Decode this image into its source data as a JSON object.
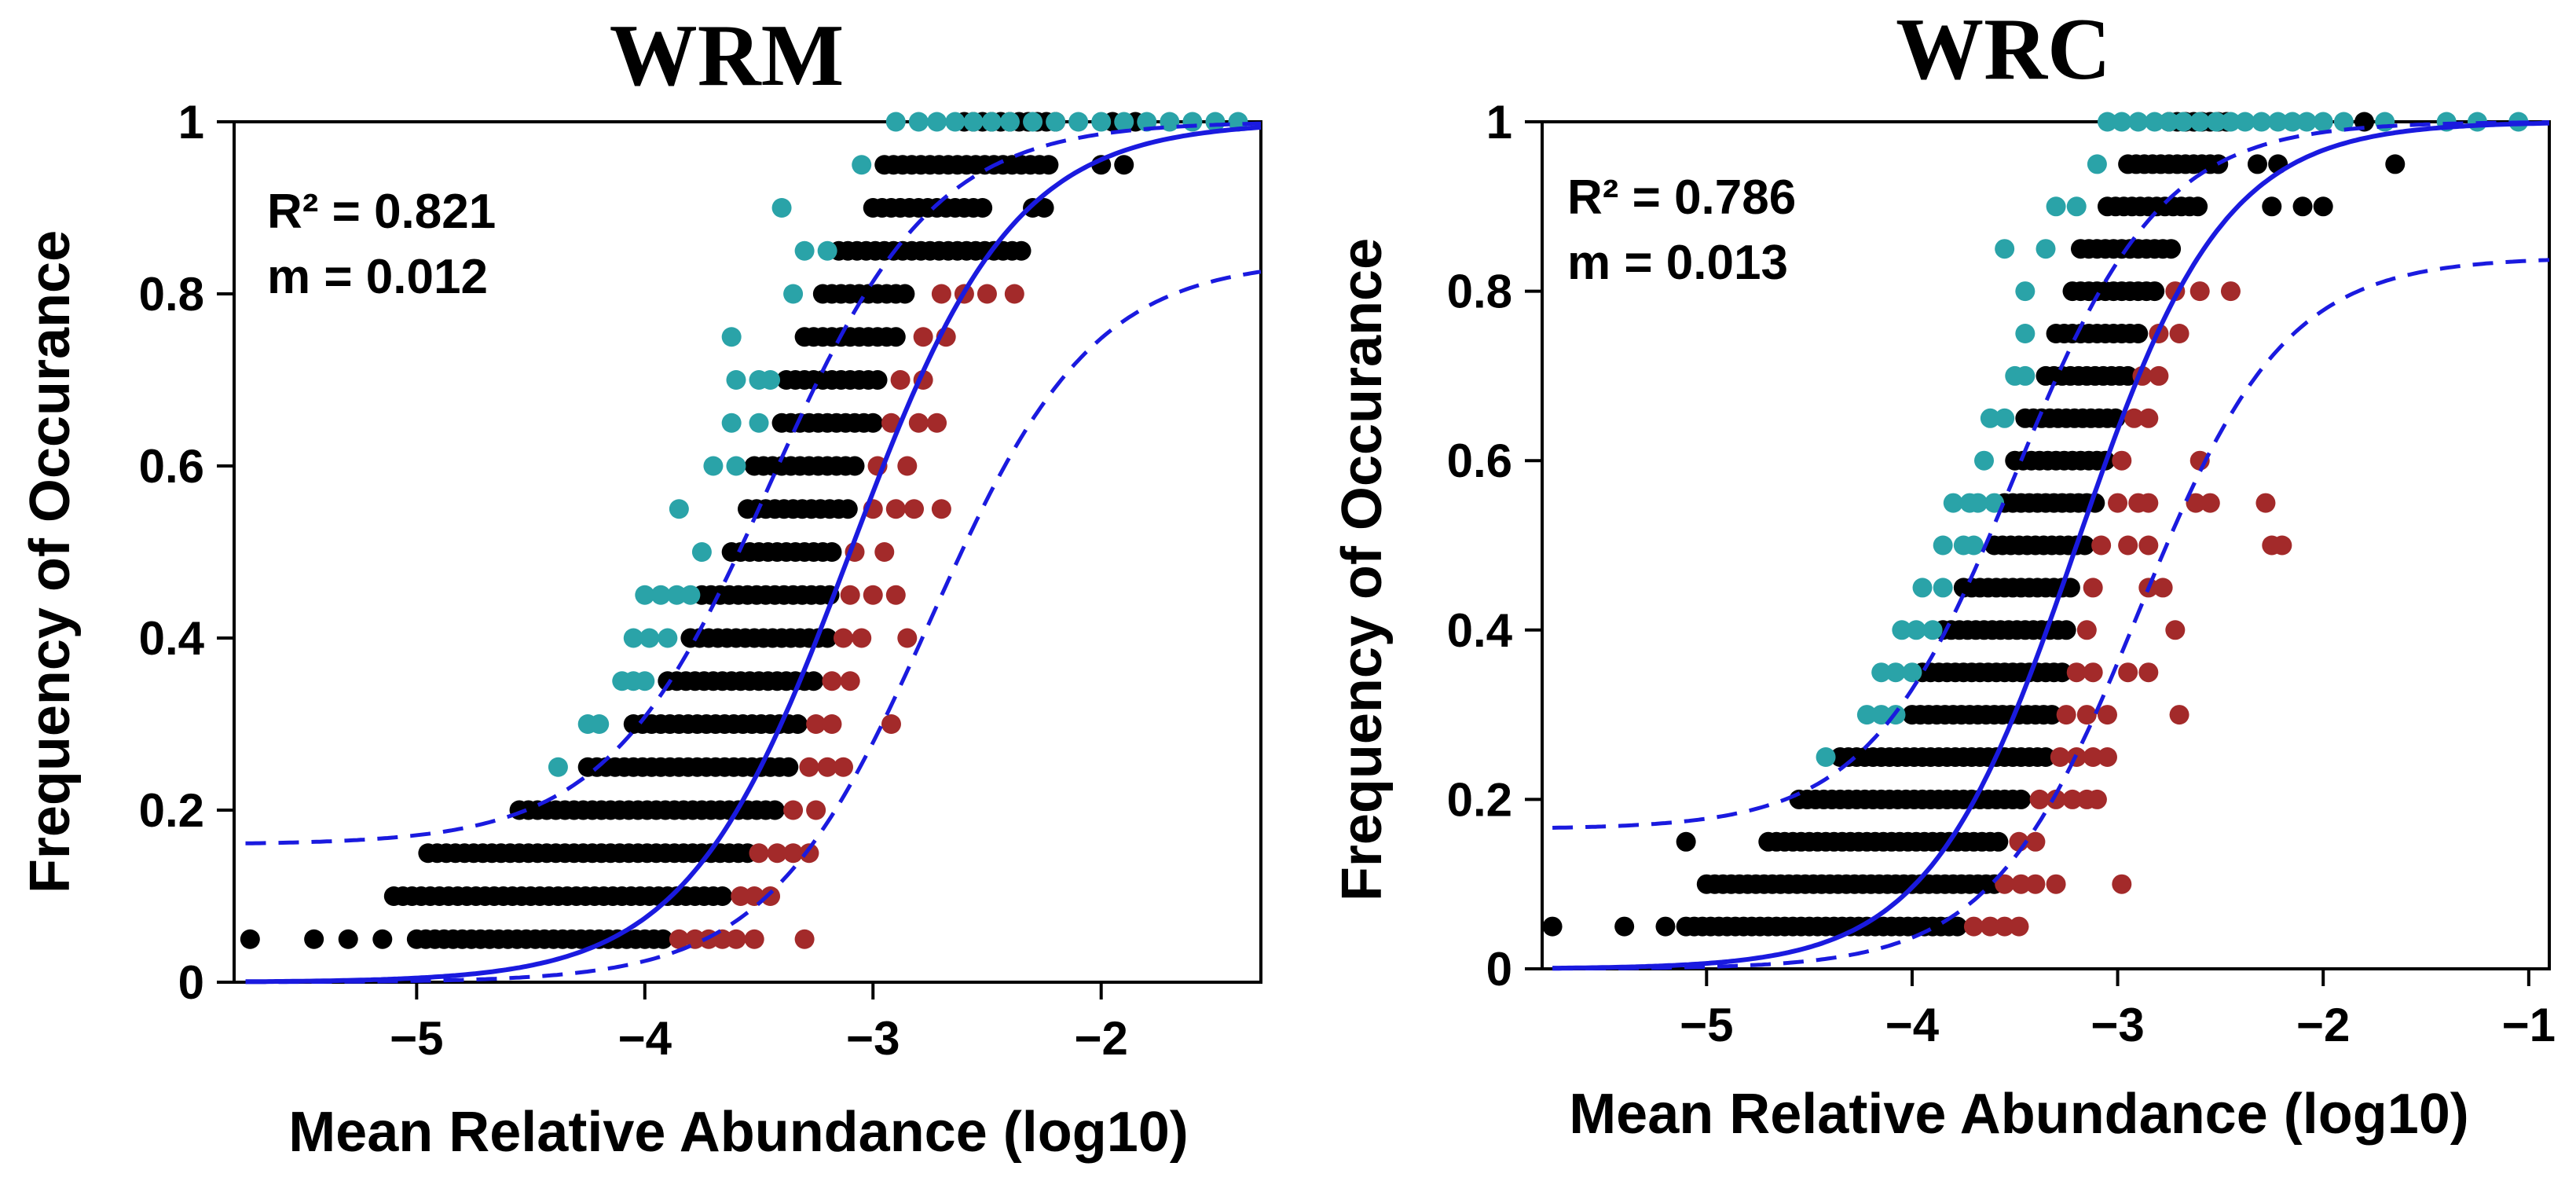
{
  "colors": {
    "above": "#2aa3a8",
    "within": "#000000",
    "below": "#a32a2a",
    "fit": "#1a1adf"
  },
  "chart_data": [
    {
      "type": "scatter",
      "title": "WRM",
      "xlabel": "Mean Relative Abundance (log10)",
      "ylabel": "Frequency of Occurance",
      "xlim": [
        -5.8,
        -1.3
      ],
      "ylim": [
        0,
        1
      ],
      "xticks": [
        -5,
        -4,
        -3,
        -2
      ],
      "xtick_labels": [
        "−5",
        "−4",
        "−3",
        "−2"
      ],
      "yticks": [
        0,
        0.2,
        0.4,
        0.6,
        0.8,
        1
      ],
      "ytick_labels": [
        "0",
        "0.2",
        "0.4",
        "0.6",
        "0.8",
        "1"
      ],
      "annotations": [
        "R² = 0.821",
        "m = 0.012"
      ],
      "model": {
        "type": "sigmoid_fit",
        "center": -3.1,
        "slope": 2.8,
        "upper_ci_max": 1.0,
        "lower_ci_max": 0.84,
        "upper_ci_min": 0.16,
        "ci_shift": 0.35,
        "r2": 0.821,
        "m": 0.012
      },
      "rows": [
        {
          "y": 0.05,
          "within": [
            -5.73,
            -5.45,
            -5.3,
            -5.15
          ],
          "within_range": [
            -5.0,
            -3.9
          ],
          "below": [
            -3.85,
            -3.78,
            -3.72,
            -3.66,
            -3.6,
            -3.52,
            -3.3
          ],
          "above": []
        },
        {
          "y": 0.1,
          "within": [],
          "within_range": [
            -5.1,
            -3.65
          ],
          "below": [
            -3.58,
            -3.52,
            -3.45
          ],
          "above": []
        },
        {
          "y": 0.15,
          "within": [],
          "within_range": [
            -4.95,
            -3.55
          ],
          "below": [
            -3.5,
            -3.42,
            -3.35,
            -3.28
          ],
          "above": []
        },
        {
          "y": 0.2,
          "within": [],
          "within_range": [
            -4.55,
            -3.42
          ],
          "below": [
            -3.35,
            -3.25
          ],
          "above": []
        },
        {
          "y": 0.25,
          "within": [],
          "within_range": [
            -4.25,
            -3.35
          ],
          "below": [
            -3.28,
            -3.2,
            -3.13
          ],
          "above": [
            -4.38
          ]
        },
        {
          "y": 0.3,
          "within": [],
          "within_range": [
            -4.05,
            -3.3
          ],
          "below": [
            -3.25,
            -3.18,
            -2.92
          ],
          "above": [
            -4.25,
            -4.2
          ]
        },
        {
          "y": 0.35,
          "within": [],
          "within_range": [
            -3.9,
            -3.25
          ],
          "below": [
            -3.18,
            -3.1
          ],
          "above": [
            -4.1,
            -4.05,
            -4.0
          ]
        },
        {
          "y": 0.4,
          "within": [],
          "within_range": [
            -3.8,
            -3.2
          ],
          "below": [
            -3.13,
            -3.05,
            -2.85
          ],
          "above": [
            -4.05,
            -3.98,
            -3.9
          ]
        },
        {
          "y": 0.45,
          "within": [],
          "within_range": [
            -3.75,
            -3.17
          ],
          "below": [
            -3.1,
            -3.0,
            -2.9
          ],
          "above": [
            -4.0,
            -3.93,
            -3.86,
            -3.8
          ]
        },
        {
          "y": 0.5,
          "within": [],
          "within_range": [
            -3.62,
            -3.15
          ],
          "below": [
            -3.08,
            -2.95
          ],
          "above": [
            -3.75
          ]
        },
        {
          "y": 0.55,
          "within": [],
          "within_range": [
            -3.55,
            -3.1
          ],
          "below": [
            -3.0,
            -2.9,
            -2.82,
            -2.7
          ],
          "above": [
            -3.85
          ]
        },
        {
          "y": 0.6,
          "within": [],
          "within_range": [
            -3.52,
            -3.05
          ],
          "below": [
            -2.98,
            -2.85
          ],
          "above": [
            -3.7,
            -3.6
          ]
        },
        {
          "y": 0.65,
          "within": [],
          "within_range": [
            -3.4,
            -3.0
          ],
          "below": [
            -2.92,
            -2.8,
            -2.72
          ],
          "above": [
            -3.62,
            -3.5
          ]
        },
        {
          "y": 0.7,
          "within": [],
          "within_range": [
            -3.38,
            -2.95
          ],
          "below": [
            -2.88,
            -2.78
          ],
          "above": [
            -3.6,
            -3.5,
            -3.45
          ]
        },
        {
          "y": 0.75,
          "within": [],
          "within_range": [
            -3.3,
            -2.9
          ],
          "below": [
            -2.78,
            -2.68
          ],
          "above": [
            -3.62
          ]
        },
        {
          "y": 0.8,
          "within": [],
          "within_range": [
            -3.22,
            -2.85
          ],
          "below": [
            -2.7,
            -2.6,
            -2.5,
            -2.38
          ],
          "above": [
            -3.35
          ]
        },
        {
          "y": 0.85,
          "within": [],
          "within_range": [
            -3.15,
            -2.32
          ],
          "below": [],
          "above": [
            -3.3,
            -3.2
          ]
        },
        {
          "y": 0.9,
          "within": [
            -2.3,
            -2.25
          ],
          "within_range": [
            -3.0,
            -2.5
          ],
          "below": [],
          "above": [
            -3.4
          ]
        },
        {
          "y": 0.95,
          "within": [
            -2.0,
            -1.9
          ],
          "within_range": [
            -2.95,
            -2.2
          ],
          "below": [],
          "above": [
            -3.05
          ]
        },
        {
          "y": 1.0,
          "within": [
            -1.95,
            -1.85
          ],
          "within_range": [
            -2.6,
            -2.2
          ],
          "below": [],
          "above": [
            -2.9,
            -2.8,
            -2.72,
            -2.64,
            -2.56,
            -2.48,
            -2.4,
            -2.3,
            -2.2,
            -2.1,
            -2.0,
            -1.9,
            -1.8,
            -1.7,
            -1.6,
            -1.5,
            -1.4
          ]
        }
      ]
    },
    {
      "type": "scatter",
      "title": "WRC",
      "xlabel": "Mean Relative Abundance (log10)",
      "ylabel": "Frequency of Occurance",
      "xlim": [
        -5.8,
        -0.9
      ],
      "ylim": [
        0,
        1
      ],
      "xticks": [
        -5,
        -4,
        -3,
        -2,
        -1
      ],
      "xtick_labels": [
        "−5",
        "−4",
        "−3",
        "−2",
        "−1"
      ],
      "yticks": [
        0,
        0.2,
        0.4,
        0.6,
        0.8,
        1
      ],
      "ytick_labels": [
        "0",
        "0.2",
        "0.4",
        "0.6",
        "0.8",
        "1"
      ],
      "annotations": [
        "R² = 0.786",
        "m = 0.013"
      ],
      "model": {
        "type": "sigmoid_fit",
        "center": -3.2,
        "slope": 2.8,
        "upper_ci_max": 1.0,
        "lower_ci_max": 0.84,
        "upper_ci_min": 0.165,
        "ci_shift": 0.3,
        "r2": 0.786,
        "m": 0.013
      },
      "rows": [
        {
          "y": 0.05,
          "within": [
            -5.75,
            -5.4,
            -5.2
          ],
          "within_range": [
            -5.1,
            -3.75
          ],
          "below": [
            -3.7,
            -3.62,
            -3.55,
            -3.48
          ],
          "above": []
        },
        {
          "y": 0.1,
          "within": [],
          "within_range": [
            -5.0,
            -3.6
          ],
          "below": [
            -3.55,
            -3.47,
            -3.4,
            -3.3,
            -2.98
          ],
          "above": []
        },
        {
          "y": 0.15,
          "within": [
            -5.1
          ],
          "within_range": [
            -4.7,
            -3.55
          ],
          "below": [
            -3.48,
            -3.4
          ],
          "above": []
        },
        {
          "y": 0.2,
          "within": [],
          "within_range": [
            -4.55,
            -3.45
          ],
          "below": [
            -3.38,
            -3.3,
            -3.22,
            -3.15,
            -3.1
          ],
          "above": []
        },
        {
          "y": 0.25,
          "within": [],
          "within_range": [
            -4.35,
            -3.35
          ],
          "below": [
            -3.28,
            -3.2,
            -3.12,
            -3.05
          ],
          "above": [
            -4.42
          ]
        },
        {
          "y": 0.3,
          "within": [],
          "within_range": [
            -4.0,
            -3.3
          ],
          "below": [
            -3.25,
            -3.15,
            -3.05,
            -2.7
          ],
          "above": [
            -4.22,
            -4.15,
            -4.08
          ]
        },
        {
          "y": 0.35,
          "within": [],
          "within_range": [
            -3.95,
            -3.25
          ],
          "below": [
            -3.2,
            -3.12,
            -2.95,
            -2.85
          ],
          "above": [
            -4.15,
            -4.08,
            -4.0
          ]
        },
        {
          "y": 0.4,
          "within": [],
          "within_range": [
            -3.85,
            -3.22
          ],
          "below": [
            -3.15,
            -2.72
          ],
          "above": [
            -4.05,
            -3.98,
            -3.9
          ]
        },
        {
          "y": 0.45,
          "within": [],
          "within_range": [
            -3.75,
            -3.2
          ],
          "below": [
            -3.12,
            -2.85,
            -2.78
          ],
          "above": [
            -3.95,
            -3.85
          ]
        },
        {
          "y": 0.5,
          "within": [],
          "within_range": [
            -3.6,
            -3.15
          ],
          "below": [
            -3.08,
            -2.95,
            -2.85,
            -2.25,
            -2.2
          ],
          "above": [
            -3.85,
            -3.75,
            -3.7
          ]
        },
        {
          "y": 0.55,
          "within": [],
          "within_range": [
            -3.55,
            -3.08
          ],
          "below": [
            -3.0,
            -2.9,
            -2.85,
            -2.62,
            -2.55,
            -2.28
          ],
          "above": [
            -3.8,
            -3.72,
            -3.68,
            -3.6
          ]
        },
        {
          "y": 0.6,
          "within": [],
          "within_range": [
            -3.5,
            -3.05
          ],
          "below": [
            -2.98,
            -2.6
          ],
          "above": [
            -3.65
          ]
        },
        {
          "y": 0.65,
          "within": [],
          "within_range": [
            -3.45,
            -3.0
          ],
          "below": [
            -2.92,
            -2.85
          ],
          "above": [
            -3.62,
            -3.55
          ]
        },
        {
          "y": 0.7,
          "within": [],
          "within_range": [
            -3.35,
            -2.95
          ],
          "below": [
            -2.88,
            -2.8
          ],
          "above": [
            -3.5,
            -3.45
          ]
        },
        {
          "y": 0.75,
          "within": [],
          "within_range": [
            -3.3,
            -2.88
          ],
          "below": [
            -2.8,
            -2.7
          ],
          "above": [
            -3.45
          ]
        },
        {
          "y": 0.8,
          "within": [],
          "within_range": [
            -3.22,
            -2.8
          ],
          "below": [
            -2.72,
            -2.6,
            -2.45
          ],
          "above": [
            -3.45
          ]
        },
        {
          "y": 0.85,
          "within": [],
          "within_range": [
            -3.18,
            -2.72
          ],
          "below": [],
          "above": [
            -3.55,
            -3.35
          ]
        },
        {
          "y": 0.9,
          "within": [
            -2.25,
            -2.1,
            -2.0
          ],
          "within_range": [
            -3.05,
            -2.6
          ],
          "below": [],
          "above": [
            -3.3,
            -3.2
          ]
        },
        {
          "y": 0.95,
          "within": [
            -2.32,
            -2.22,
            -1.65
          ],
          "within_range": [
            -2.95,
            -2.5
          ],
          "below": [],
          "above": [
            -3.1
          ]
        },
        {
          "y": 1.0,
          "within": [
            -1.8
          ],
          "within_range": [
            -2.75,
            -2.45
          ],
          "below": [],
          "above": [
            -3.05,
            -2.98,
            -2.9,
            -2.82,
            -2.75,
            -2.68,
            -2.6,
            -2.52,
            -2.45,
            -2.38,
            -2.3,
            -2.22,
            -2.15,
            -2.08,
            -2.0,
            -1.9,
            -1.7,
            -1.4,
            -1.25,
            -1.05
          ]
        }
      ]
    }
  ]
}
